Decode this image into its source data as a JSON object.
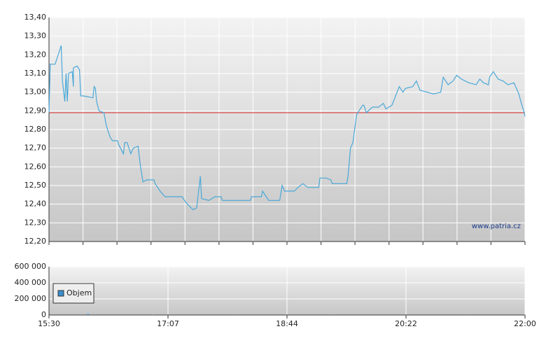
{
  "chart_data": [
    {
      "type": "line",
      "watermark": "www.patria.cz",
      "reference": 12.89,
      "reference_color": "#d62020",
      "xlim": [
        0,
        390
      ],
      "xticks": [
        0,
        27.9,
        55.7,
        83.6,
        111.4,
        139.3,
        167.1,
        195,
        222.9,
        250.7,
        278.6,
        306.4,
        334.3,
        362.1,
        390
      ],
      "ylim": [
        12.2,
        13.4
      ],
      "yticks": [
        {
          "value": 12.2,
          "label": "12,20"
        },
        {
          "value": 12.3,
          "label": "12,30"
        },
        {
          "value": 12.4,
          "label": "12,40"
        },
        {
          "value": 12.5,
          "label": "12,50"
        },
        {
          "value": 12.6,
          "label": "12,60"
        },
        {
          "value": 12.7,
          "label": "12,70"
        },
        {
          "value": 12.8,
          "label": "12,80"
        },
        {
          "value": 12.9,
          "label": "12,90"
        },
        {
          "value": 13.0,
          "label": "13,00"
        },
        {
          "value": 13.1,
          "label": "13,10"
        },
        {
          "value": 13.2,
          "label": "13,20"
        },
        {
          "value": 13.3,
          "label": "13,30"
        },
        {
          "value": 13.4,
          "label": "13,40"
        }
      ],
      "grid": true,
      "series": [
        {
          "color": "#4aa8d8",
          "x": [
            0,
            1,
            5,
            10,
            11,
            13,
            14,
            15,
            16,
            19,
            20,
            20,
            23,
            25,
            26,
            28,
            36,
            37,
            38,
            39,
            41,
            45,
            47,
            50,
            52,
            56,
            57,
            61,
            62,
            64,
            67,
            69,
            73,
            75,
            77,
            80,
            86,
            87,
            91,
            95,
            109,
            112,
            115,
            118,
            121,
            124,
            125,
            131,
            136,
            141,
            142,
            158,
            165,
            166,
            174,
            175,
            178,
            180,
            189,
            191,
            193,
            201,
            204,
            208,
            212,
            221,
            222,
            227,
            231,
            232,
            244,
            245,
            247,
            249,
            252,
            255,
            257,
            258,
            260,
            265,
            270,
            274,
            276,
            281,
            284,
            287,
            290,
            292,
            298,
            301,
            304,
            310,
            315,
            321,
            323,
            327,
            331,
            334,
            338,
            344,
            350,
            353,
            356,
            360,
            361,
            364,
            368,
            372,
            376,
            381,
            383,
            385,
            387,
            389,
            390
          ],
          "values": [
            12.89,
            13.15,
            13.15,
            13.25,
            13.06,
            12.95,
            13.1,
            12.95,
            13.1,
            13.11,
            13.03,
            13.13,
            13.14,
            13.12,
            12.98,
            12.98,
            12.97,
            13.03,
            13.02,
            12.95,
            12.9,
            12.89,
            12.82,
            12.76,
            12.74,
            12.74,
            12.72,
            12.67,
            12.73,
            12.73,
            12.67,
            12.7,
            12.71,
            12.6,
            12.52,
            12.53,
            12.53,
            12.51,
            12.47,
            12.44,
            12.44,
            12.41,
            12.39,
            12.37,
            12.38,
            12.55,
            12.43,
            12.42,
            12.44,
            12.44,
            12.42,
            12.42,
            12.42,
            12.44,
            12.44,
            12.47,
            12.44,
            12.42,
            12.42,
            12.5,
            12.47,
            12.47,
            12.49,
            12.51,
            12.49,
            12.49,
            12.54,
            12.54,
            12.53,
            12.51,
            12.51,
            12.55,
            12.7,
            12.73,
            12.88,
            12.91,
            12.93,
            12.93,
            12.89,
            12.92,
            12.92,
            12.94,
            12.91,
            12.93,
            12.98,
            13.03,
            13.0,
            13.02,
            13.03,
            13.06,
            13.01,
            13.0,
            12.99,
            13.0,
            13.08,
            13.04,
            13.06,
            13.09,
            13.07,
            13.05,
            13.04,
            13.07,
            13.05,
            13.04,
            13.08,
            13.11,
            13.07,
            13.06,
            13.04,
            13.05,
            13.02,
            12.99,
            12.94,
            12.9,
            12.87
          ]
        }
      ]
    },
    {
      "type": "bar",
      "legend": "top-left",
      "xlim": [
        0,
        390
      ],
      "xticks": [
        {
          "value": 0,
          "label": "15:30"
        },
        {
          "value": 97.5,
          "label": "17:07"
        },
        {
          "value": 195,
          "label": "18:44"
        },
        {
          "value": 292.5,
          "label": "20:22"
        },
        {
          "value": 390,
          "label": "22:00"
        }
      ],
      "ylim": [
        0,
        600000
      ],
      "yticks": [
        0,
        {
          "value": 200000,
          "label": "200 000"
        },
        {
          "value": 400000,
          "label": "400 000"
        },
        {
          "value": 600000,
          "label": "600 000"
        }
      ],
      "grid": true,
      "series": [
        {
          "name": "Objem",
          "color": "#3a8fd0",
          "x": [
            0,
            32,
            85,
            150,
            230,
            340,
            390
          ],
          "values": [
            3000,
            15000,
            2000,
            2000,
            1500,
            2000,
            4000
          ]
        }
      ]
    }
  ]
}
